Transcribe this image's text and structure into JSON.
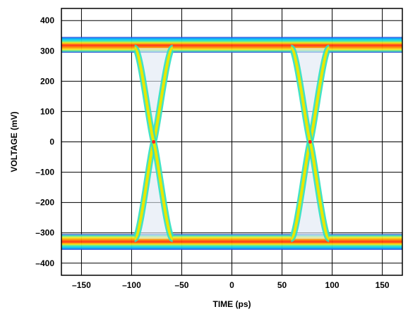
{
  "chart_data": {
    "type": "eye-diagram",
    "xlabel": "TIME (ps)",
    "ylabel": "VOLTAGE (mV)",
    "xlim": [
      -170,
      170
    ],
    "ylim": [
      -440,
      440
    ],
    "x_ticks": [
      -150,
      -100,
      -50,
      0,
      50,
      100,
      150
    ],
    "y_ticks": [
      400,
      300,
      200,
      100,
      0,
      -100,
      -200,
      -300,
      -400
    ],
    "x_tick_labels": [
      "–150",
      "–100",
      "–50",
      "0",
      "50",
      "100",
      "150"
    ],
    "y_tick_labels": [
      "400",
      "300",
      "200",
      "100",
      "0",
      "–100",
      "–200",
      "–300",
      "–400"
    ],
    "grid": true,
    "high_level_mV": 320,
    "low_level_mV": -330,
    "crossings": [
      {
        "time_ps": -78,
        "voltage_mV": 0
      },
      {
        "time_ps": 78,
        "voltage_mV": 0
      }
    ],
    "transition_width_ps": 30,
    "density_colors": [
      "#2020d0",
      "#00b0ff",
      "#40e0a0",
      "#e8e800",
      "#ff8000",
      "#ff2020"
    ]
  }
}
